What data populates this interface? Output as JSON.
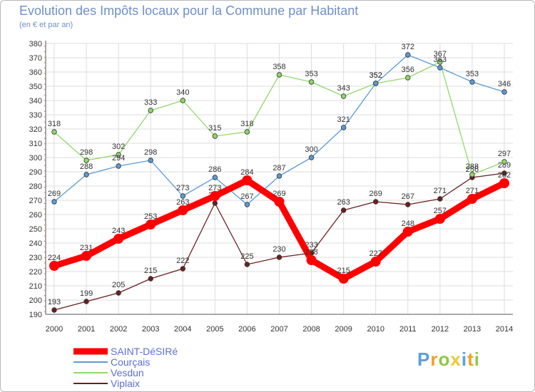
{
  "chart_data": {
    "type": "line",
    "title": "Evolution des Impôts locaux pour la Commune par Habitant",
    "subtitle": "(en € et par an)",
    "xlabel": "",
    "ylabel": "",
    "ylim": [
      190,
      380
    ],
    "ytick_step": 10,
    "grid": true,
    "legend_position": "bottom-left",
    "categories": [
      "2000",
      "2001",
      "2002",
      "2003",
      "2004",
      "2005",
      "2006",
      "2007",
      "2008",
      "2009",
      "2010",
      "2011",
      "2012",
      "2013",
      "2014"
    ],
    "series": [
      {
        "name": "Viplaix",
        "color": "#6b1f1f",
        "emphasis": false,
        "values": [
          193,
          199,
          205,
          215,
          222,
          268,
          225,
          230,
          233,
          263,
          269,
          267,
          271,
          286,
          289
        ],
        "labels": [
          "193",
          "199",
          "205",
          "215",
          "222",
          "268",
          "225",
          "230",
          "233",
          "263",
          "269",
          "267",
          "271",
          "286",
          "289"
        ]
      },
      {
        "name": "Vesdun",
        "color": "#90d86a",
        "emphasis": false,
        "values": [
          318,
          298,
          302,
          333,
          340,
          315,
          318,
          358,
          353,
          343,
          352,
          356,
          367,
          288,
          297
        ],
        "labels": [
          "318",
          "298",
          "302",
          "333",
          "340",
          "315",
          "318",
          "358",
          "353",
          "343",
          "352",
          "356",
          "367",
          "288",
          "297"
        ]
      },
      {
        "name": "Courçais",
        "color": "#5b9bd5",
        "emphasis": false,
        "values": [
          269,
          288,
          294,
          298,
          273,
          286,
          267,
          287,
          300,
          321,
          352,
          372,
          363,
          353,
          346
        ],
        "labels": [
          "269",
          "288",
          "294",
          "298",
          "273",
          "286",
          "267",
          "287",
          "300",
          "321",
          "352",
          "372",
          "363",
          "353",
          "346"
        ]
      },
      {
        "name": "SAINT-DéSIRé",
        "color": "#ff0000",
        "emphasis": true,
        "values": [
          224,
          231,
          243,
          253,
          263,
          273,
          284,
          269,
          228,
          215,
          227,
          248,
          257,
          271,
          282
        ],
        "labels": [
          "224",
          "231",
          "243",
          "253",
          "263",
          "273",
          "284",
          "269",
          "228",
          "215",
          "227",
          "248",
          "257",
          "271",
          "282"
        ]
      }
    ],
    "legend_order": [
      "SAINT-DéSIRé",
      "Courçais",
      "Vesdun",
      "Viplaix"
    ]
  },
  "brand": {
    "letters": [
      "P",
      "r",
      "o",
      "x",
      "i",
      "t",
      "i"
    ],
    "colors": [
      "#5aa0dc",
      "#f0a028",
      "#90c846",
      "#f0c832",
      "#5aa0dc",
      "#f0a028",
      "#90c846"
    ]
  }
}
